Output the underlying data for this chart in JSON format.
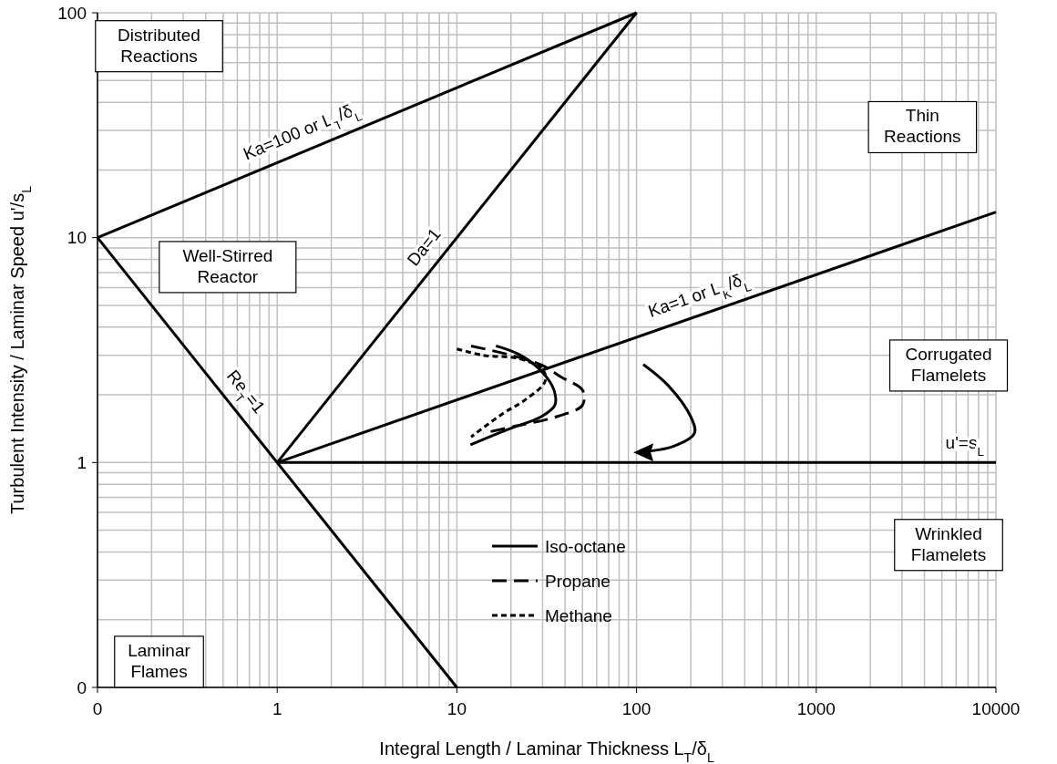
{
  "chart_data": {
    "type": "line",
    "xlabel": "Integral Length / Laminar Thickness L$_{T}$/δ$_{L}$",
    "ylabel": "Turbulent Intensity / Laminar Speed u'/s$_{L}$",
    "log": "xy",
    "xlim": [
      0.1,
      10000
    ],
    "ylim": [
      0.1,
      100
    ],
    "xticks": [
      {
        "value": 0.1,
        "label": "0"
      },
      1,
      10,
      100,
      1000,
      10000
    ],
    "yticks": [
      {
        "value": 0.1,
        "label": "0"
      },
      1,
      10,
      100
    ],
    "grid": true,
    "legend": "bottom",
    "series": [
      {
        "color": "#000000",
        "line_style": "solid",
        "x": [
          0.1,
          100
        ],
        "values": [
          10,
          100
        ]
      },
      {
        "color": "#000000",
        "line_style": "solid",
        "x": [
          1,
          100
        ],
        "values": [
          1,
          100
        ]
      },
      {
        "color": "#000000",
        "line_style": "solid",
        "x": [
          0.1,
          10
        ],
        "values": [
          10,
          0.1
        ]
      },
      {
        "color": "#000000",
        "line_style": "solid",
        "x": [
          1,
          10000
        ],
        "values": [
          1,
          13
        ]
      },
      {
        "color": "#000000",
        "line_style": "solid",
        "x": [
          1,
          10000
        ],
        "values": [
          1,
          1
        ]
      },
      {
        "name": "Iso-octane",
        "color": "#000000",
        "line_style": "solid",
        "x": [
          16.5,
          22.6,
          30.2,
          34.7,
          35.1,
          29.5,
          19,
          11.9
        ],
        "values": [
          3.3,
          3,
          2.5,
          2.1,
          1.8,
          1.6,
          1.4,
          1.2
        ]
      },
      {
        "name": "Propane",
        "color": "#000000",
        "line_style": "dashed",
        "x": [
          12,
          20,
          30,
          38,
          50,
          50,
          36,
          21,
          14
        ],
        "values": [
          3.3,
          3,
          2.7,
          2.4,
          2.1,
          1.8,
          1.6,
          1.45,
          1.35
        ]
      },
      {
        "name": "Methane",
        "color": "#000000",
        "line_style": "dotted",
        "x": [
          10,
          14,
          22,
          30,
          31,
          24,
          18,
          12
        ],
        "values": [
          3.2,
          3,
          2.9,
          2.6,
          2.3,
          1.9,
          1.65,
          1.3
        ]
      }
    ],
    "annotations": [
      "Distributed Reactions",
      "Thin Reactions",
      "Well-Stirred Reactor",
      "Corrugated Flamelets",
      "Wrinkled Flamelets",
      "Laminar Flames",
      {
        "text": "Ka=100 or L$_{T}$/δ$_{L}$",
        "x": 1.5,
        "y": 24.7
      },
      {
        "text": "Da=1",
        "x": 8,
        "y": 8
      },
      {
        "text": "Ka=1 or L$_{K}$/δ$_{L}$",
        "x": 240,
        "y": 4.6
      },
      {
        "text": "Re$_{T}$=1",
        "x": 0.55,
        "y": 1.818
      },
      {
        "text": "u'=s$_{L}$",
        "x": 6700,
        "y": 1
      }
    ]
  }
}
